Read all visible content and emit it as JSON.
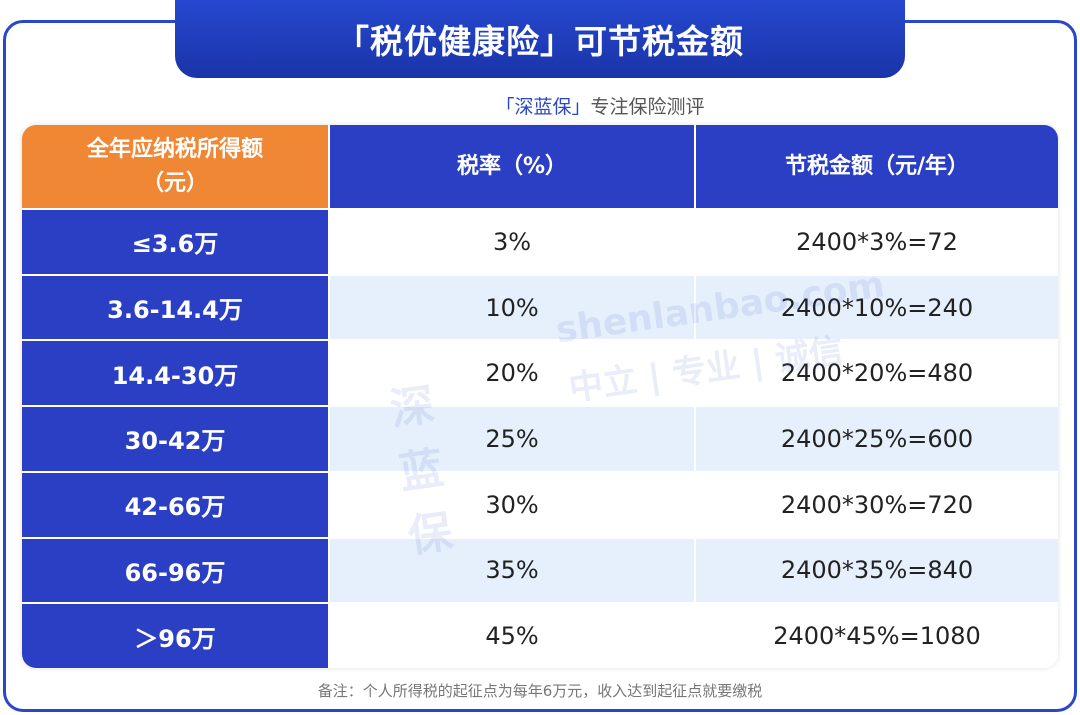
{
  "title": "「税优健康险」可节税金额",
  "subtitle": {
    "brand": "「深蓝保」",
    "text": "专注保险测评"
  },
  "table": {
    "header": [
      {
        "lines": [
          "全年应纳税所得额",
          "（元）"
        ]
      },
      {
        "lines": [
          "税率（%）"
        ]
      },
      {
        "lines": [
          "节税金额（元/年）"
        ]
      }
    ],
    "rows": [
      [
        "≤3.6万",
        "3%",
        "2400*3%=72"
      ],
      [
        "3.6-14.4万",
        "10%",
        "2400*10%=240"
      ],
      [
        "14.4-30万",
        "20%",
        "2400*20%=480"
      ],
      [
        "30-42万",
        "25%",
        "2400*25%=600"
      ],
      [
        "42-66万",
        "30%",
        "2400*30%=720"
      ],
      [
        "66-96万",
        "35%",
        "2400*35%=840"
      ],
      [
        "＞96万",
        "45%",
        "2400*45%=1080"
      ]
    ]
  },
  "watermark": {
    "logo": "深蓝保",
    "site": "shenlanbao.com",
    "slogan": "中立 | 专业 | 诚信"
  },
  "note": "备注：个人所得税的起征点为每年6万元，收入达到起征点就要缴税"
}
